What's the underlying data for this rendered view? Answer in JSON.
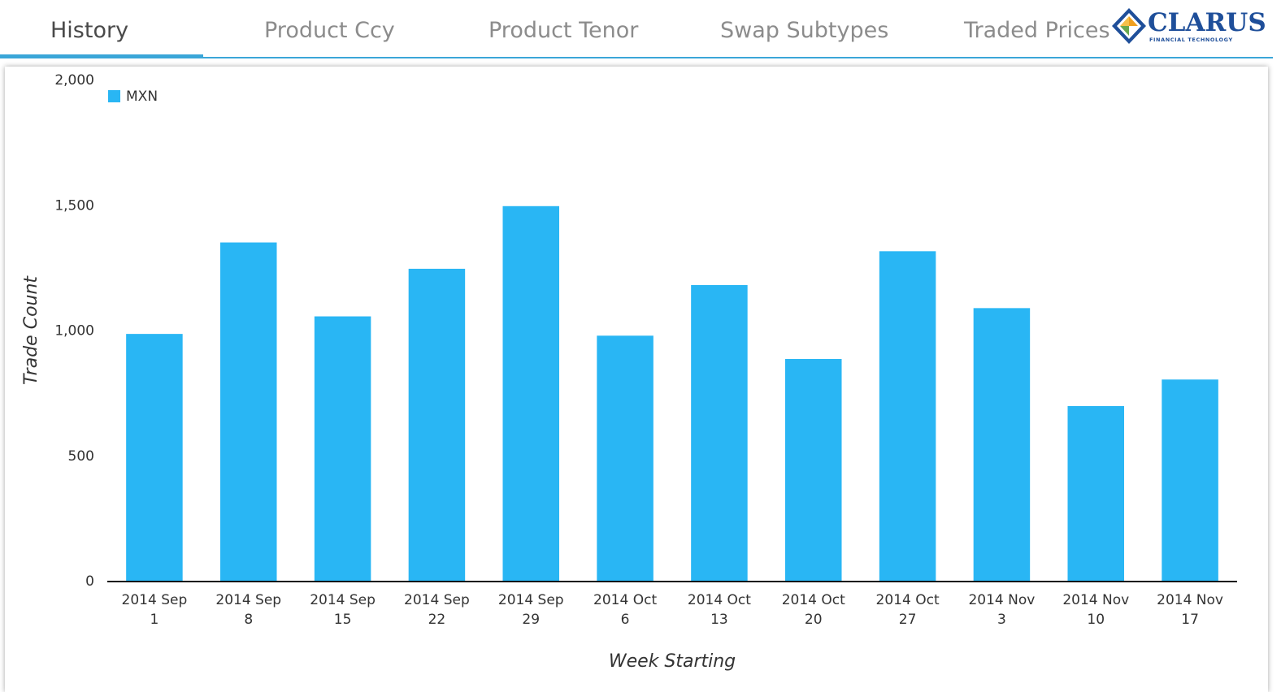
{
  "tabs": [
    {
      "label": "History",
      "active": true
    },
    {
      "label": "Product Ccy",
      "active": false
    },
    {
      "label": "Product Tenor",
      "active": false
    },
    {
      "label": "Swap Subtypes",
      "active": false
    },
    {
      "label": "Traded Prices",
      "active": false
    }
  ],
  "logo": {
    "word": "CLARUS",
    "sub": "FINANCIAL TECHNOLOGY"
  },
  "colors": {
    "accent": "#3aa6d8",
    "bar": "#29b6f4",
    "logo_blue": "#1f4f9a",
    "logo_orange": "#f0a020",
    "logo_green": "#6aa84f"
  },
  "chart_data": {
    "type": "bar",
    "categories": [
      [
        "2014 Sep",
        "1"
      ],
      [
        "2014 Sep",
        "8"
      ],
      [
        "2014 Sep",
        "15"
      ],
      [
        "2014 Sep",
        "22"
      ],
      [
        "2014 Sep",
        "29"
      ],
      [
        "2014 Oct",
        "6"
      ],
      [
        "2014 Oct",
        "13"
      ],
      [
        "2014 Oct",
        "20"
      ],
      [
        "2014 Oct",
        "27"
      ],
      [
        "2014 Nov",
        "3"
      ],
      [
        "2014 Nov",
        "10"
      ],
      [
        "2014 Nov",
        "17"
      ]
    ],
    "series": [
      {
        "name": "MXN",
        "values": [
          985,
          1350,
          1055,
          1245,
          1495,
          978,
          1180,
          885,
          1315,
          1088,
          697,
          803
        ]
      }
    ],
    "xlabel": "Week Starting",
    "ylabel": "Trade Count",
    "ylim": [
      0,
      2000
    ],
    "yticks": [
      0,
      500,
      1000,
      1500,
      2000
    ],
    "ytick_labels": [
      "0",
      "500",
      "1,000",
      "1,500",
      "2,000"
    ],
    "legend_position": "top-left",
    "grid": false
  }
}
